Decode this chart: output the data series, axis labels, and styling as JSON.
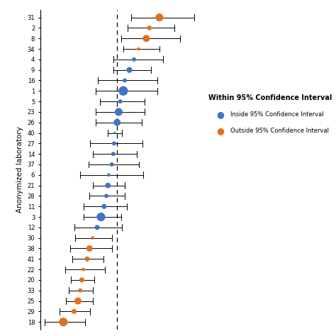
{
  "labs": [
    18,
    29,
    25,
    33,
    20,
    22,
    41,
    38,
    30,
    12,
    3,
    11,
    28,
    21,
    6,
    37,
    14,
    27,
    40,
    26,
    23,
    5,
    1,
    16,
    9,
    4,
    34,
    8,
    2,
    31
  ],
  "or": [
    1.55,
    1.42,
    1.38,
    1.28,
    1.22,
    1.16,
    1.1,
    1.08,
    1.04,
    1.02,
    1.0,
    0.97,
    0.96,
    0.95,
    0.93,
    0.89,
    0.88,
    0.86,
    0.83,
    0.79,
    0.74,
    0.68,
    0.64,
    0.61,
    0.56,
    0.54,
    0.52,
    0.49,
    0.44,
    0.3
  ],
  "ci_low": [
    1.18,
    1.14,
    1.05,
    1.08,
    0.95,
    0.95,
    0.75,
    0.72,
    0.78,
    0.72,
    0.72,
    0.88,
    0.65,
    0.68,
    0.63,
    0.52,
    0.68,
    0.64,
    0.56,
    0.56,
    0.44,
    0.45,
    0.39,
    0.42,
    0.32,
    0.4,
    0.37,
    0.33,
    0.25,
    0.06
  ],
  "ci_high": [
    2.0,
    1.75,
    1.82,
    1.55,
    1.6,
    1.44,
    1.52,
    1.52,
    1.36,
    1.36,
    1.32,
    1.06,
    1.33,
    1.26,
    1.28,
    1.34,
    1.1,
    1.1,
    1.13,
    1.05,
    1.06,
    0.93,
    0.93,
    0.82,
    0.84,
    0.7,
    0.68,
    0.68,
    0.65,
    0.58
  ],
  "outside": [
    true,
    true,
    true,
    true,
    false,
    false,
    false,
    false,
    false,
    false,
    false,
    false,
    false,
    false,
    false,
    false,
    false,
    false,
    false,
    false,
    false,
    true,
    true,
    true,
    true,
    true,
    true,
    true,
    true,
    true
  ],
  "sizes": [
    18,
    10,
    16,
    7,
    9,
    13,
    9,
    22,
    9,
    18,
    16,
    5,
    9,
    9,
    9,
    7,
    12,
    9,
    11,
    20,
    11,
    7,
    14,
    11,
    7,
    11,
    9,
    16,
    11,
    20
  ],
  "color_inside": "#4472C4",
  "color_outside": "#E07020",
  "ref_line": 1.0,
  "legend_title": "Within 95% Confidence Interval",
  "legend_inside": "Inside 95% Confidence Interval",
  "legend_outside": "Outside 95% Confidence Interval",
  "ylabel": "Anonymized laboratory",
  "background_color": "#ffffff"
}
